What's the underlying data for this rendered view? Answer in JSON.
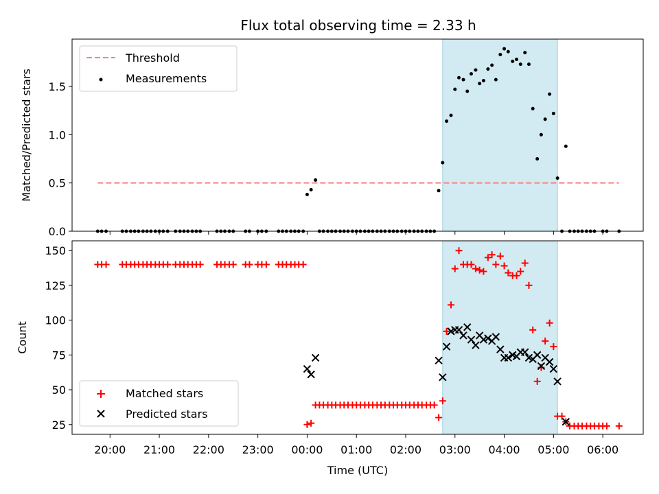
{
  "chart_data": {
    "type": "scatter",
    "title": "Flux total observing time = 2.33 h",
    "xlabel": "Time (UTC)",
    "x_ticks": [
      {
        "hour": 20,
        "label": "20:00"
      },
      {
        "hour": 21,
        "label": "21:00"
      },
      {
        "hour": 22,
        "label": "22:00"
      },
      {
        "hour": 23,
        "label": "23:00"
      },
      {
        "hour": 24,
        "label": "00:00"
      },
      {
        "hour": 25,
        "label": "01:00"
      },
      {
        "hour": 26,
        "label": "02:00"
      },
      {
        "hour": 27,
        "label": "03:00"
      },
      {
        "hour": 28,
        "label": "04:00"
      },
      {
        "hour": 29,
        "label": "05:00"
      },
      {
        "hour": 30,
        "label": "06:00"
      }
    ],
    "xlim": [
      19.23,
      30.82
    ],
    "shaded_interval": [
      26.75,
      29.08
    ],
    "colors": {
      "threshold": "#ff7f7f",
      "measurements": "#000000",
      "matched": "#ff0000",
      "predicted": "#000000",
      "span": "#add8e6"
    },
    "top": {
      "ylabel": "Matched/Predicted stars",
      "ylim": [
        0,
        1.99
      ],
      "y_ticks": [
        {
          "v": 0,
          "label": "0.0"
        },
        {
          "v": 0.5,
          "label": "0.5"
        },
        {
          "v": 1.0,
          "label": "1.0"
        },
        {
          "v": 1.5,
          "label": "1.5"
        }
      ],
      "threshold": {
        "value": 0.5,
        "x_range": [
          19.75,
          30.33
        ]
      },
      "legend": {
        "threshold_label": "Threshold",
        "measurements_label": "Measurements"
      },
      "measurements": [
        [
          19.75,
          0
        ],
        [
          19.83,
          0
        ],
        [
          19.92,
          0
        ],
        [
          20.25,
          0
        ],
        [
          20.33,
          0
        ],
        [
          20.42,
          0
        ],
        [
          20.5,
          0
        ],
        [
          20.58,
          0
        ],
        [
          20.67,
          0
        ],
        [
          20.75,
          0
        ],
        [
          20.83,
          0
        ],
        [
          20.92,
          0
        ],
        [
          21.0,
          0
        ],
        [
          21.08,
          0
        ],
        [
          21.17,
          0
        ],
        [
          21.33,
          0
        ],
        [
          21.42,
          0
        ],
        [
          21.5,
          0
        ],
        [
          21.58,
          0
        ],
        [
          21.67,
          0
        ],
        [
          21.75,
          0
        ],
        [
          21.83,
          0
        ],
        [
          22.17,
          0
        ],
        [
          22.25,
          0
        ],
        [
          22.33,
          0
        ],
        [
          22.42,
          0
        ],
        [
          22.5,
          0
        ],
        [
          22.75,
          0
        ],
        [
          22.83,
          0
        ],
        [
          23.0,
          0
        ],
        [
          23.08,
          0
        ],
        [
          23.17,
          0
        ],
        [
          23.42,
          0
        ],
        [
          23.5,
          0
        ],
        [
          23.58,
          0
        ],
        [
          23.67,
          0
        ],
        [
          23.75,
          0
        ],
        [
          23.83,
          0
        ],
        [
          23.92,
          0
        ],
        [
          24.0,
          0.38
        ],
        [
          24.08,
          0.43
        ],
        [
          24.17,
          0.53
        ],
        [
          24.25,
          0
        ],
        [
          24.33,
          0
        ],
        [
          24.42,
          0
        ],
        [
          24.5,
          0
        ],
        [
          24.58,
          0
        ],
        [
          24.67,
          0
        ],
        [
          24.75,
          0
        ],
        [
          24.83,
          0
        ],
        [
          24.92,
          0
        ],
        [
          25.0,
          0
        ],
        [
          25.08,
          0
        ],
        [
          25.17,
          0
        ],
        [
          25.25,
          0
        ],
        [
          25.33,
          0
        ],
        [
          25.42,
          0
        ],
        [
          25.5,
          0
        ],
        [
          25.58,
          0
        ],
        [
          25.67,
          0
        ],
        [
          25.75,
          0
        ],
        [
          25.83,
          0
        ],
        [
          25.92,
          0
        ],
        [
          26.0,
          0
        ],
        [
          26.08,
          0
        ],
        [
          26.17,
          0
        ],
        [
          26.25,
          0
        ],
        [
          26.33,
          0
        ],
        [
          26.42,
          0
        ],
        [
          26.5,
          0
        ],
        [
          26.58,
          0
        ],
        [
          26.67,
          0.42
        ],
        [
          26.75,
          0.71
        ],
        [
          26.83,
          1.14
        ],
        [
          26.92,
          1.2
        ],
        [
          27.0,
          1.47
        ],
        [
          27.08,
          1.59
        ],
        [
          27.17,
          1.57
        ],
        [
          27.25,
          1.45
        ],
        [
          27.33,
          1.63
        ],
        [
          27.42,
          1.67
        ],
        [
          27.5,
          1.53
        ],
        [
          27.58,
          1.56
        ],
        [
          27.67,
          1.68
        ],
        [
          27.75,
          1.72
        ],
        [
          27.83,
          1.57
        ],
        [
          27.92,
          1.83
        ],
        [
          28.0,
          1.89
        ],
        [
          28.08,
          1.86
        ],
        [
          28.17,
          1.76
        ],
        [
          28.25,
          1.78
        ],
        [
          28.33,
          1.73
        ],
        [
          28.42,
          1.85
        ],
        [
          28.5,
          1.73
        ],
        [
          28.58,
          1.27
        ],
        [
          28.67,
          0.75
        ],
        [
          28.75,
          1.0
        ],
        [
          28.83,
          1.16
        ],
        [
          28.92,
          1.42
        ],
        [
          29.0,
          1.22
        ],
        [
          29.08,
          0.55
        ],
        [
          29.25,
          0.88
        ],
        [
          29.17,
          0
        ],
        [
          29.33,
          0
        ],
        [
          29.42,
          0
        ],
        [
          29.5,
          0
        ],
        [
          29.58,
          0
        ],
        [
          29.67,
          0
        ],
        [
          29.75,
          0
        ],
        [
          29.83,
          0
        ],
        [
          30.0,
          0
        ],
        [
          30.08,
          0
        ],
        [
          30.33,
          0
        ]
      ]
    },
    "bottom": {
      "ylabel": "Count",
      "ylim": [
        18,
        157
      ],
      "y_ticks": [
        {
          "v": 25,
          "label": "25"
        },
        {
          "v": 50,
          "label": "50"
        },
        {
          "v": 75,
          "label": "75"
        },
        {
          "v": 100,
          "label": "100"
        },
        {
          "v": 125,
          "label": "125"
        },
        {
          "v": 150,
          "label": "150"
        }
      ],
      "legend": {
        "matched_label": "Matched stars",
        "predicted_label": "Predicted stars"
      },
      "matched": [
        [
          19.75,
          140
        ],
        [
          19.83,
          140
        ],
        [
          19.92,
          140
        ],
        [
          20.25,
          140
        ],
        [
          20.33,
          140
        ],
        [
          20.42,
          140
        ],
        [
          20.5,
          140
        ],
        [
          20.58,
          140
        ],
        [
          20.67,
          140
        ],
        [
          20.75,
          140
        ],
        [
          20.83,
          140
        ],
        [
          20.92,
          140
        ],
        [
          21.0,
          140
        ],
        [
          21.08,
          140
        ],
        [
          21.17,
          140
        ],
        [
          21.33,
          140
        ],
        [
          21.42,
          140
        ],
        [
          21.5,
          140
        ],
        [
          21.58,
          140
        ],
        [
          21.67,
          140
        ],
        [
          21.75,
          140
        ],
        [
          21.83,
          140
        ],
        [
          22.17,
          140
        ],
        [
          22.25,
          140
        ],
        [
          22.33,
          140
        ],
        [
          22.42,
          140
        ],
        [
          22.5,
          140
        ],
        [
          22.75,
          140
        ],
        [
          22.83,
          140
        ],
        [
          23.0,
          140
        ],
        [
          23.08,
          140
        ],
        [
          23.17,
          140
        ],
        [
          23.42,
          140
        ],
        [
          23.5,
          140
        ],
        [
          23.58,
          140
        ],
        [
          23.67,
          140
        ],
        [
          23.75,
          140
        ],
        [
          23.83,
          140
        ],
        [
          23.92,
          140
        ],
        [
          24.0,
          25
        ],
        [
          24.08,
          26
        ],
        [
          24.17,
          39
        ],
        [
          24.25,
          39
        ],
        [
          24.33,
          39
        ],
        [
          24.42,
          39
        ],
        [
          24.5,
          39
        ],
        [
          24.58,
          39
        ],
        [
          24.67,
          39
        ],
        [
          24.75,
          39
        ],
        [
          24.83,
          39
        ],
        [
          24.92,
          39
        ],
        [
          25.0,
          39
        ],
        [
          25.08,
          39
        ],
        [
          25.17,
          39
        ],
        [
          25.25,
          39
        ],
        [
          25.33,
          39
        ],
        [
          25.42,
          39
        ],
        [
          25.5,
          39
        ],
        [
          25.58,
          39
        ],
        [
          25.67,
          39
        ],
        [
          25.75,
          39
        ],
        [
          25.83,
          39
        ],
        [
          25.92,
          39
        ],
        [
          26.0,
          39
        ],
        [
          26.08,
          39
        ],
        [
          26.17,
          39
        ],
        [
          26.25,
          39
        ],
        [
          26.33,
          39
        ],
        [
          26.42,
          39
        ],
        [
          26.5,
          39
        ],
        [
          26.58,
          39
        ],
        [
          26.67,
          30
        ],
        [
          26.75,
          42
        ],
        [
          26.83,
          92
        ],
        [
          26.92,
          111
        ],
        [
          27.0,
          137
        ],
        [
          27.08,
          150
        ],
        [
          27.17,
          140
        ],
        [
          27.25,
          140
        ],
        [
          27.33,
          140
        ],
        [
          27.42,
          137
        ],
        [
          27.5,
          136
        ],
        [
          27.58,
          135
        ],
        [
          27.67,
          145
        ],
        [
          27.75,
          147
        ],
        [
          27.83,
          140
        ],
        [
          27.92,
          146
        ],
        [
          28.0,
          139
        ],
        [
          28.08,
          134
        ],
        [
          28.17,
          132
        ],
        [
          28.25,
          132
        ],
        [
          28.33,
          135
        ],
        [
          28.42,
          141
        ],
        [
          28.5,
          125
        ],
        [
          28.58,
          93
        ],
        [
          28.67,
          56
        ],
        [
          28.75,
          66
        ],
        [
          28.83,
          85
        ],
        [
          28.92,
          98
        ],
        [
          29.0,
          81
        ],
        [
          29.08,
          31
        ],
        [
          29.17,
          31
        ],
        [
          29.25,
          27
        ],
        [
          29.33,
          24
        ],
        [
          29.42,
          24
        ],
        [
          29.5,
          24
        ],
        [
          29.58,
          24
        ],
        [
          29.67,
          24
        ],
        [
          29.75,
          24
        ],
        [
          29.83,
          24
        ],
        [
          29.92,
          24
        ],
        [
          30.0,
          24
        ],
        [
          30.08,
          24
        ],
        [
          30.33,
          24
        ]
      ],
      "predicted": [
        [
          24.0,
          65
        ],
        [
          24.08,
          61
        ],
        [
          24.17,
          73
        ],
        [
          26.67,
          71
        ],
        [
          26.75,
          59
        ],
        [
          26.83,
          81
        ],
        [
          26.92,
          92
        ],
        [
          27.0,
          93
        ],
        [
          27.08,
          93
        ],
        [
          27.17,
          89
        ],
        [
          27.25,
          95
        ],
        [
          27.33,
          86
        ],
        [
          27.42,
          82
        ],
        [
          27.5,
          89
        ],
        [
          27.58,
          86
        ],
        [
          27.67,
          87
        ],
        [
          27.75,
          85
        ],
        [
          27.83,
          88
        ],
        [
          27.92,
          79
        ],
        [
          28.0,
          73
        ],
        [
          28.08,
          73
        ],
        [
          28.17,
          75
        ],
        [
          28.25,
          74
        ],
        [
          28.33,
          77
        ],
        [
          28.42,
          77
        ],
        [
          28.5,
          73
        ],
        [
          28.58,
          72
        ],
        [
          28.67,
          75
        ],
        [
          28.75,
          67
        ],
        [
          28.83,
          73
        ],
        [
          28.92,
          70
        ],
        [
          29.0,
          65
        ],
        [
          29.08,
          56
        ],
        [
          29.25,
          27
        ]
      ]
    }
  }
}
